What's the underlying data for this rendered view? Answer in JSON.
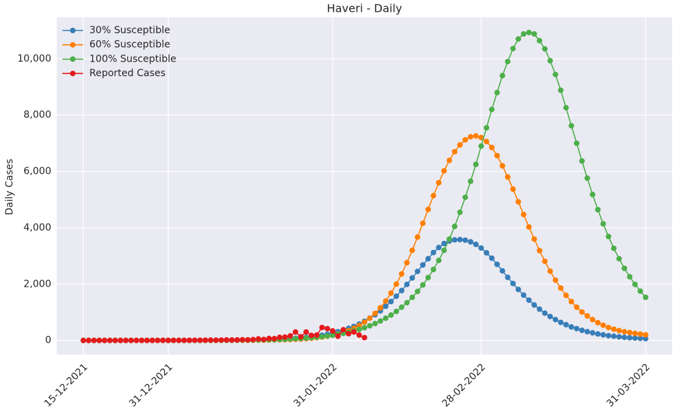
{
  "chart_data": {
    "type": "line",
    "title": "Haveri - Daily",
    "ylabel": "Daily Cases",
    "x": [
      "15-12-2021",
      "16-12-2021",
      "17-12-2021",
      "18-12-2021",
      "19-12-2021",
      "20-12-2021",
      "21-12-2021",
      "22-12-2021",
      "23-12-2021",
      "24-12-2021",
      "25-12-2021",
      "26-12-2021",
      "27-12-2021",
      "28-12-2021",
      "29-12-2021",
      "30-12-2021",
      "31-12-2021",
      "01-01-2022",
      "02-01-2022",
      "03-01-2022",
      "04-01-2022",
      "05-01-2022",
      "06-01-2022",
      "07-01-2022",
      "08-01-2022",
      "09-01-2022",
      "10-01-2022",
      "11-01-2022",
      "12-01-2022",
      "13-01-2022",
      "14-01-2022",
      "15-01-2022",
      "16-01-2022",
      "17-01-2022",
      "18-01-2022",
      "19-01-2022",
      "20-01-2022",
      "21-01-2022",
      "22-01-2022",
      "23-01-2022",
      "24-01-2022",
      "25-01-2022",
      "26-01-2022",
      "27-01-2022",
      "28-01-2022",
      "29-01-2022",
      "30-01-2022",
      "31-01-2022",
      "01-02-2022",
      "02-02-2022",
      "03-02-2022",
      "04-02-2022",
      "05-02-2022",
      "06-02-2022",
      "07-02-2022",
      "08-02-2022",
      "09-02-2022",
      "10-02-2022",
      "11-02-2022",
      "12-02-2022",
      "13-02-2022",
      "14-02-2022",
      "15-02-2022",
      "16-02-2022",
      "17-02-2022",
      "18-02-2022",
      "19-02-2022",
      "20-02-2022",
      "21-02-2022",
      "22-02-2022",
      "23-02-2022",
      "24-02-2022",
      "25-02-2022",
      "26-02-2022",
      "27-02-2022",
      "28-02-2022",
      "01-03-2022",
      "02-03-2022",
      "03-03-2022",
      "04-03-2022",
      "05-03-2022",
      "06-03-2022",
      "07-03-2022",
      "08-03-2022",
      "09-03-2022",
      "10-03-2022",
      "11-03-2022",
      "12-03-2022",
      "13-03-2022",
      "14-03-2022",
      "15-03-2022",
      "16-03-2022",
      "17-03-2022",
      "18-03-2022",
      "19-03-2022",
      "20-03-2022",
      "21-03-2022",
      "22-03-2022",
      "23-03-2022",
      "24-03-2022",
      "25-03-2022",
      "26-03-2022",
      "27-03-2022",
      "28-03-2022",
      "29-03-2022",
      "30-03-2022",
      "31-03-2022"
    ],
    "series": [
      {
        "name": "30% Susceptible",
        "color": "#377eb8",
        "values": [
          0,
          0,
          0,
          0,
          0,
          0,
          0,
          0,
          0,
          0,
          0,
          0,
          1,
          1,
          1,
          1,
          1,
          1,
          2,
          2,
          2,
          3,
          3,
          4,
          5,
          6,
          7,
          8,
          9,
          11,
          13,
          16,
          19,
          22,
          27,
          32,
          38,
          45,
          54,
          64,
          77,
          92,
          110,
          130,
          155,
          185,
          220,
          260,
          310,
          360,
          430,
          500,
          580,
          680,
          790,
          910,
          1050,
          1210,
          1380,
          1570,
          1770,
          1990,
          2220,
          2450,
          2680,
          2900,
          3120,
          3300,
          3440,
          3530,
          3570,
          3580,
          3560,
          3500,
          3410,
          3280,
          3110,
          2920,
          2700,
          2470,
          2240,
          2020,
          1810,
          1610,
          1430,
          1260,
          1110,
          970,
          850,
          740,
          640,
          560,
          480,
          420,
          360,
          310,
          270,
          230,
          200,
          170,
          150,
          130,
          110,
          95,
          85,
          75,
          65
        ]
      },
      {
        "name": "60% Susceptible",
        "color": "#ff7f00",
        "values": [
          0,
          0,
          0,
          0,
          0,
          0,
          0,
          0,
          0,
          0,
          0,
          1,
          1,
          1,
          1,
          1,
          1,
          1,
          1,
          1,
          1,
          1,
          1,
          1,
          1,
          2,
          2,
          3,
          3,
          4,
          5,
          6,
          7,
          9,
          11,
          13,
          17,
          21,
          26,
          32,
          40,
          50,
          63,
          78,
          97,
          120,
          150,
          185,
          230,
          280,
          350,
          430,
          530,
          650,
          790,
          960,
          1160,
          1400,
          1680,
          2000,
          2360,
          2760,
          3200,
          3670,
          4160,
          4650,
          5140,
          5600,
          6020,
          6390,
          6700,
          6940,
          7120,
          7230,
          7260,
          7200,
          7060,
          6850,
          6560,
          6200,
          5800,
          5370,
          4920,
          4470,
          4030,
          3600,
          3190,
          2810,
          2460,
          2140,
          1860,
          1600,
          1380,
          1180,
          1010,
          870,
          740,
          630,
          540,
          460,
          400,
          350,
          310,
          280,
          250,
          225,
          200
        ]
      },
      {
        "name": "100% Susceptible",
        "color": "#4daf4a",
        "values": [
          0,
          0,
          0,
          0,
          0,
          0,
          0,
          0,
          0,
          0,
          0,
          1,
          1,
          1,
          1,
          1,
          1,
          1,
          1,
          1,
          1,
          2,
          2,
          3,
          3,
          4,
          5,
          6,
          7,
          9,
          11,
          13,
          15,
          18,
          22,
          26,
          31,
          37,
          44,
          52,
          61,
          72,
          84,
          98,
          115,
          135,
          160,
          185,
          215,
          250,
          290,
          340,
          390,
          450,
          520,
          600,
          690,
          790,
          900,
          1030,
          1180,
          1340,
          1530,
          1740,
          1970,
          2230,
          2520,
          2840,
          3200,
          3600,
          4050,
          4550,
          5080,
          5650,
          6250,
          6900,
          7550,
          8200,
          8800,
          9400,
          9900,
          10360,
          10700,
          10880,
          10930,
          10880,
          10640,
          10350,
          9930,
          9440,
          8880,
          8260,
          7620,
          7000,
          6370,
          5760,
          5180,
          4640,
          4140,
          3690,
          3270,
          2900,
          2560,
          2260,
          1990,
          1750,
          1530
        ]
      },
      {
        "name": "Reported Cases",
        "color": "#e41a1c",
        "values": [
          0,
          0,
          0,
          0,
          0,
          0,
          0,
          0,
          0,
          0,
          0,
          0,
          0,
          0,
          2,
          3,
          2,
          4,
          3,
          5,
          4,
          6,
          8,
          10,
          12,
          9,
          14,
          18,
          15,
          20,
          25,
          22,
          30,
          55,
          35,
          70,
          65,
          110,
          120,
          160,
          300,
          130,
          300,
          180,
          190,
          460,
          420,
          340,
          150,
          380,
          240,
          300,
          190,
          100,
          null,
          null,
          null,
          null,
          null,
          null,
          null,
          null,
          null,
          null,
          null,
          null,
          null,
          null,
          null,
          null,
          null,
          null,
          null,
          null,
          null,
          null,
          null,
          null,
          null,
          null,
          null,
          null,
          null,
          null,
          null,
          null,
          null,
          null,
          null,
          null,
          null,
          null,
          null,
          null,
          null,
          null,
          null,
          null,
          null,
          null,
          null,
          null,
          null,
          null,
          null,
          null,
          null
        ]
      }
    ],
    "xlim": [
      "10-12-2021",
      "05-04-2022"
    ],
    "xticks": [
      "15-12-2021",
      "31-12-2021",
      "31-01-2022",
      "28-02-2022",
      "31-03-2022"
    ],
    "ylim": [
      -500,
      11470
    ],
    "yticks": [
      0,
      {
        "value": 2000,
        "label": "2,000"
      },
      {
        "value": 4000,
        "label": "4,000"
      },
      {
        "value": 6000,
        "label": "6,000"
      },
      {
        "value": 8000,
        "label": "8,000"
      },
      {
        "value": 10000,
        "label": "10,000"
      }
    ],
    "grid": true,
    "legend": "upper left"
  }
}
